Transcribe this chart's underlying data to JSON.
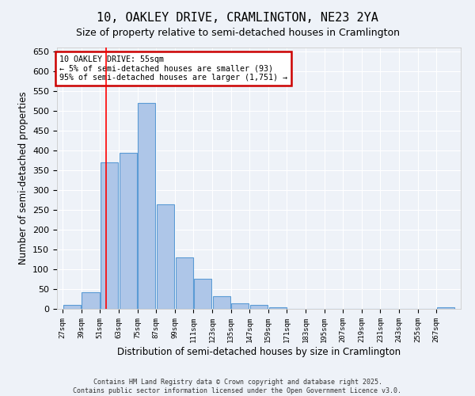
{
  "title": "10, OAKLEY DRIVE, CRAMLINGTON, NE23 2YA",
  "subtitle": "Size of property relative to semi-detached houses in Cramlington",
  "xlabel": "Distribution of semi-detached houses by size in Cramlington",
  "ylabel": "Number of semi-detached properties",
  "footer_line1": "Contains HM Land Registry data © Crown copyright and database right 2025.",
  "footer_line2": "Contains public sector information licensed under the Open Government Licence v3.0.",
  "bin_labels": [
    "27sqm",
    "39sqm",
    "51sqm",
    "63sqm",
    "75sqm",
    "87sqm",
    "99sqm",
    "111sqm",
    "123sqm",
    "135sqm",
    "147sqm",
    "159sqm",
    "171sqm",
    "183sqm",
    "195sqm",
    "207sqm",
    "219sqm",
    "231sqm",
    "243sqm",
    "255sqm",
    "267sqm"
  ],
  "bar_values": [
    10,
    42,
    370,
    395,
    520,
    265,
    130,
    77,
    32,
    14,
    11,
    5,
    0,
    0,
    0,
    0,
    0,
    0,
    0,
    0,
    5
  ],
  "bar_color": "#aec6e8",
  "bar_edge_color": "#5b9bd5",
  "red_line_x": 55,
  "bin_edges": [
    27,
    39,
    51,
    63,
    75,
    87,
    99,
    111,
    123,
    135,
    147,
    159,
    171,
    183,
    195,
    207,
    219,
    231,
    243,
    255,
    267,
    279
  ],
  "annotation_text": "10 OAKLEY DRIVE: 55sqm\n← 5% of semi-detached houses are smaller (93)\n95% of semi-detached houses are larger (1,751) →",
  "annotation_box_color": "#ffffff",
  "annotation_box_edge_color": "#cc0000",
  "ylim": [
    0,
    660
  ],
  "yticks": [
    0,
    50,
    100,
    150,
    200,
    250,
    300,
    350,
    400,
    450,
    500,
    550,
    600,
    650
  ],
  "background_color": "#eef2f8",
  "grid_color": "#ffffff",
  "title_fontsize": 11,
  "subtitle_fontsize": 9
}
